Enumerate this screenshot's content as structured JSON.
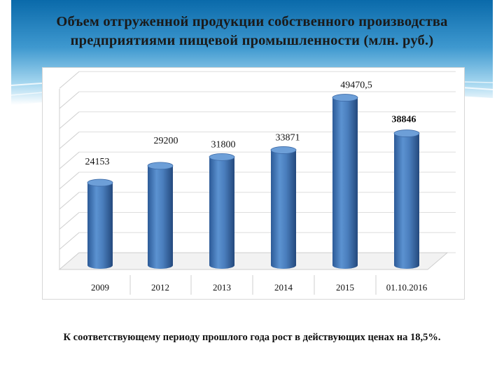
{
  "slide": {
    "title": "Объем отгруженной продукции собственного производства предприятиями пищевой промышленности (млн. руб.)",
    "footnote": "К соответствующему периоду прошлого года рост в действующих ценах на 18,5%.",
    "colors": {
      "banner_top": "#0b6fb0",
      "banner_bottom": "#bfe3f4",
      "bar": "#4a7ebd"
    }
  },
  "chart_data": {
    "type": "bar",
    "title": "",
    "xlabel": "",
    "ylabel": "",
    "categories": [
      "2009",
      "2012",
      "2013",
      "2014",
      "2015",
      "01.10.2016"
    ],
    "values": [
      24153,
      29200,
      31800,
      33871,
      49470.5,
      38846
    ],
    "data_labels": [
      "24153",
      "29200",
      "31800",
      "33871",
      "49470,5",
      "38846"
    ],
    "ylim": [
      0,
      55000
    ],
    "grid": true,
    "style": "3d-cylinder"
  }
}
